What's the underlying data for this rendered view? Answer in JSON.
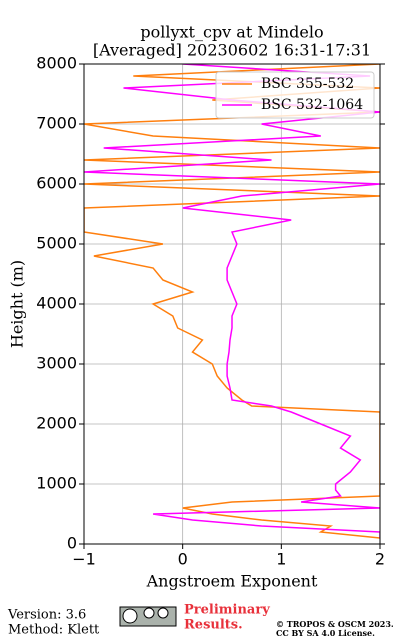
{
  "chart_data": {
    "type": "line",
    "title": [
      "pollyxt_cpv at Mindelo",
      "[Averaged] 20230602 16:31-17:31"
    ],
    "x_label": "Angstroem Exponent",
    "y_label": "Height (m)",
    "heights": [
      100,
      200,
      300,
      400,
      500,
      600,
      700,
      800,
      900,
      1000,
      1200,
      1400,
      1600,
      1800,
      2000,
      2200,
      2300,
      2400,
      2600,
      2800,
      3000,
      3200,
      3400,
      3600,
      3800,
      4000,
      4200,
      4400,
      4600,
      4800,
      5000,
      5200,
      5400,
      5600,
      5800,
      6000,
      6200,
      6400,
      6600,
      6800,
      7000,
      7200,
      7400,
      7600,
      7800,
      8000
    ],
    "series": [
      {
        "name": "BSC 355-532",
        "color": "#ff7f0e",
        "values": [
          2,
          1.4,
          1.5,
          0.8,
          0.3,
          0.0,
          0.5,
          2.0,
          2.0,
          2.0,
          2,
          2,
          2,
          2,
          2,
          2,
          0.7,
          0.6,
          0.45,
          0.35,
          0.3,
          0.1,
          0.2,
          -0.05,
          -0.1,
          -0.3,
          0.1,
          -0.2,
          -0.3,
          -0.9,
          -0.2,
          -1.0,
          -1.0,
          -1.0,
          2.0,
          -1.0,
          2.0,
          -1.0,
          2.0,
          -0.3,
          -1.0,
          2.0,
          0.3,
          2.0,
          -0.5,
          2.0
        ]
      },
      {
        "name": "BSC 532-1064",
        "color": "#ff00ff",
        "values": [
          2,
          2,
          0.8,
          0.1,
          -0.3,
          2.0,
          1.2,
          1.6,
          1.55,
          1.55,
          1.7,
          1.8,
          1.6,
          1.7,
          1.4,
          1.1,
          0.9,
          0.5,
          0.48,
          0.45,
          0.45,
          0.47,
          0.48,
          0.5,
          0.5,
          0.55,
          0.5,
          0.45,
          0.45,
          0.5,
          0.55,
          0.5,
          1.1,
          0.0,
          0.6,
          2.0,
          -1.0,
          0.9,
          -0.8,
          1.4,
          0.8,
          2.0,
          0.5,
          -0.6,
          1.9,
          0.0
        ]
      }
    ],
    "xlim": [
      -1,
      2
    ],
    "xticks": [
      {
        "value": -1,
        "label": "−1"
      },
      0,
      1,
      2
    ],
    "ylim": [
      0,
      8000
    ],
    "yticks": [
      0,
      1000,
      2000,
      3000,
      4000,
      5000,
      6000,
      7000,
      8000
    ],
    "grid": true,
    "legend": "upper right"
  },
  "footer": {
    "version": "Version: 3.6",
    "method": "Method: Klett",
    "preliminary": [
      "Preliminary",
      "Results."
    ],
    "copyright": [
      "© TROPOS & OSCM 2023.",
      "CC BY SA 4.0 License."
    ]
  }
}
